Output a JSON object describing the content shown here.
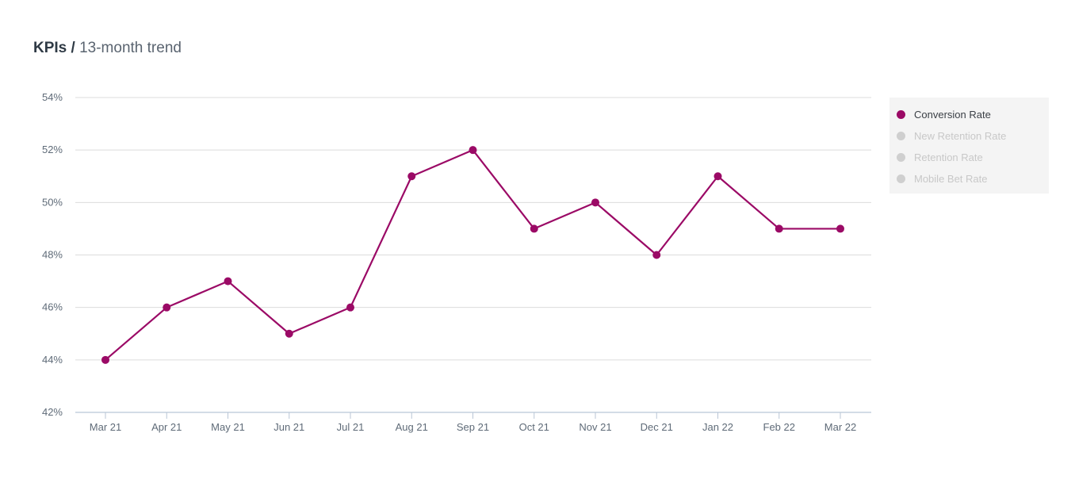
{
  "header": {
    "title_bold": "KPIs",
    "separator": "/",
    "title_rest": "13-month trend"
  },
  "colors": {
    "series": "#9b0a66",
    "inactive": "#cfcfcf",
    "grid": "#dcdcdc",
    "tick_text": "#5f6b78"
  },
  "chart_data": {
    "type": "line",
    "title": "KPIs / 13-month trend",
    "categories": [
      "Mar 21",
      "Apr 21",
      "May 21",
      "Jun 21",
      "Jul 21",
      "Aug 21",
      "Sep 21",
      "Oct 21",
      "Nov 21",
      "Dec 21",
      "Jan 22",
      "Feb 22",
      "Mar 22"
    ],
    "series": [
      {
        "name": "Conversion Rate",
        "values": [
          44,
          46,
          47,
          45,
          46,
          51,
          52,
          49,
          50,
          48,
          51,
          49,
          49
        ],
        "visible": true
      },
      {
        "name": "New Retention Rate",
        "visible": false
      },
      {
        "name": "Retention Rate",
        "visible": false
      },
      {
        "name": "Mobile Bet Rate",
        "visible": false
      }
    ],
    "ylim": [
      42,
      54
    ],
    "yticks": [
      42,
      44,
      46,
      48,
      50,
      52,
      54
    ],
    "ytick_labels": [
      "42%",
      "44%",
      "46%",
      "48%",
      "50%",
      "52%",
      "54%"
    ],
    "xlabel": "",
    "ylabel": "",
    "grid": true,
    "legend_position": "right"
  },
  "legend": {
    "items": [
      {
        "label": "Conversion Rate",
        "active": true
      },
      {
        "label": "New Retention Rate",
        "active": false
      },
      {
        "label": "Retention Rate",
        "active": false
      },
      {
        "label": "Mobile Bet Rate",
        "active": false
      }
    ]
  }
}
